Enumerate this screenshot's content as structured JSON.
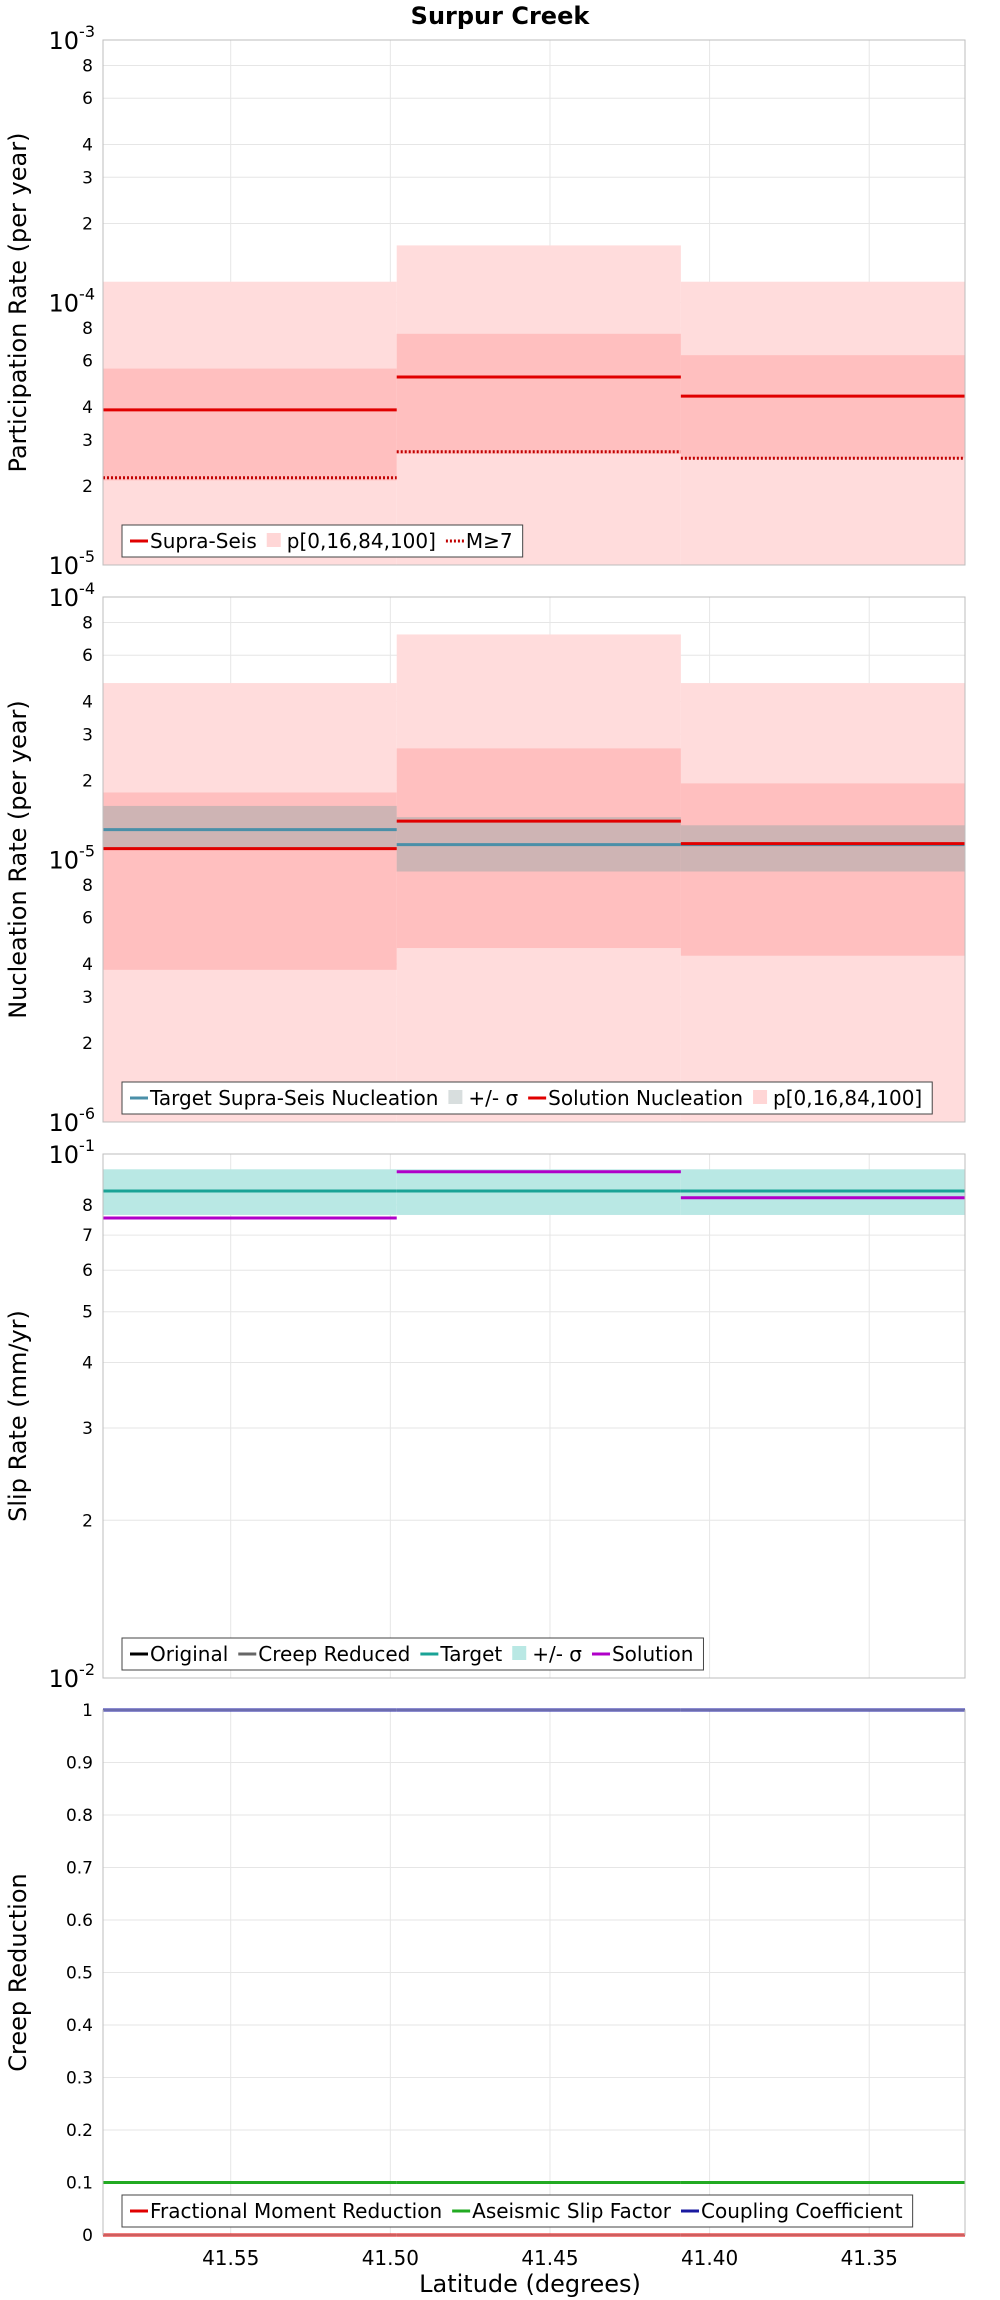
{
  "title": "Surpur Creek",
  "xlabel": "Latitude (degrees)",
  "chart_data": [
    {
      "type": "line",
      "ylabel": "Participation Rate (per year)",
      "yscale": "log",
      "ylim": [
        1e-05,
        0.001
      ],
      "xlim": [
        41.59,
        41.32
      ],
      "x_edges": [
        41.59,
        41.498,
        41.409,
        41.32
      ],
      "yticks": [
        {
          "v": 1e-05,
          "b": "10",
          "e": "-5"
        },
        {
          "v": 2e-05,
          "l": "2"
        },
        {
          "v": 3e-05,
          "l": "3"
        },
        {
          "v": 4e-05,
          "l": "4"
        },
        {
          "v": 6e-05,
          "l": "6"
        },
        {
          "v": 8e-05,
          "l": "8"
        },
        {
          "v": 0.0001,
          "b": "10",
          "e": "-4"
        },
        {
          "v": 0.0002,
          "l": "2"
        },
        {
          "v": 0.0003,
          "l": "3"
        },
        {
          "v": 0.0004,
          "l": "4"
        },
        {
          "v": 0.0006,
          "l": "6"
        },
        {
          "v": 0.0008,
          "l": "8"
        },
        {
          "v": 0.001,
          "b": "10",
          "e": "-3"
        }
      ],
      "bands": [
        {
          "color": "#ffdcdc",
          "lo": [
            1e-05,
            1e-05,
            1e-05
          ],
          "hi": [
            0.00012,
            0.000165,
            0.00012
          ]
        },
        {
          "color": "#ffbfbf",
          "lo": [
            2.1e-05,
            2.65e-05,
            2.55e-05
          ],
          "hi": [
            5.6e-05,
            7.6e-05,
            6.3e-05
          ]
        }
      ],
      "series": [
        {
          "name": "Supra-Seis",
          "color": "#e00000",
          "dash": "",
          "values": [
            3.9e-05,
            5.2e-05,
            4.4e-05
          ]
        },
        {
          "name": "M≥7",
          "color": "#c00000",
          "dash": "2,2",
          "values": [
            2.15e-05,
            2.7e-05,
            2.55e-05
          ]
        }
      ],
      "legend": [
        {
          "kind": "line",
          "color": "#e00000",
          "label": "Supra-Seis"
        },
        {
          "kind": "box",
          "color": "#ffd6d6",
          "label": "p[0,16,84,100]"
        },
        {
          "kind": "dash",
          "color": "#c00000",
          "label": "M≥7"
        }
      ]
    },
    {
      "type": "line",
      "ylabel": "Nucleation Rate (per year)",
      "yscale": "log",
      "ylim": [
        1e-06,
        0.0001
      ],
      "xlim": [
        41.59,
        41.32
      ],
      "x_edges": [
        41.59,
        41.498,
        41.409,
        41.32
      ],
      "yticks": [
        {
          "v": 1e-06,
          "b": "10",
          "e": "-6"
        },
        {
          "v": 2e-06,
          "l": "2"
        },
        {
          "v": 3e-06,
          "l": "3"
        },
        {
          "v": 4e-06,
          "l": "4"
        },
        {
          "v": 6e-06,
          "l": "6"
        },
        {
          "v": 8e-06,
          "l": "8"
        },
        {
          "v": 1e-05,
          "b": "10",
          "e": "-5"
        },
        {
          "v": 2e-05,
          "l": "2"
        },
        {
          "v": 3e-05,
          "l": "3"
        },
        {
          "v": 4e-05,
          "l": "4"
        },
        {
          "v": 6e-05,
          "l": "6"
        },
        {
          "v": 8e-05,
          "l": "8"
        },
        {
          "v": 0.0001,
          "b": "10",
          "e": "-4"
        }
      ],
      "bands": [
        {
          "color": "#ffdcdc",
          "lo": [
            1e-06,
            1e-06,
            1e-06
          ],
          "hi": [
            4.7e-05,
            7.2e-05,
            4.7e-05
          ]
        },
        {
          "color": "#ffbfbf",
          "lo": [
            3.8e-06,
            4.6e-06,
            4.3e-06
          ],
          "hi": [
            1.8e-05,
            2.65e-05,
            1.95e-05
          ]
        },
        {
          "color": "#c9b2b2",
          "opacity": 0.9,
          "lo": [
            1.1e-05,
            9e-06,
            9e-06
          ],
          "hi": [
            1.6e-05,
            1.45e-05,
            1.35e-05
          ]
        }
      ],
      "series": [
        {
          "name": "Target Supra-Seis Nucleation",
          "color": "#4a8fa8",
          "dash": "",
          "values": [
            1.3e-05,
            1.14e-05,
            1.14e-05
          ]
        },
        {
          "name": "Solution Nucleation",
          "color": "#e00000",
          "dash": "",
          "values": [
            1.1e-05,
            1.4e-05,
            1.15e-05
          ]
        }
      ],
      "legend": [
        {
          "kind": "line",
          "color": "#4a8fa8",
          "label": "Target Supra-Seis Nucleation"
        },
        {
          "kind": "box",
          "color": "#d8dede",
          "label": "+/- σ"
        },
        {
          "kind": "line",
          "color": "#e00000",
          "label": "Solution Nucleation"
        },
        {
          "kind": "box",
          "color": "#ffd6d6",
          "label": "p[0,16,84,100]"
        }
      ]
    },
    {
      "type": "line",
      "ylabel": "Slip Rate (mm/yr)",
      "yscale": "log",
      "ylim": [
        0.01,
        0.1
      ],
      "xlim": [
        41.59,
        41.32
      ],
      "x_edges": [
        41.59,
        41.498,
        41.409,
        41.32
      ],
      "yticks": [
        {
          "v": 0.01,
          "b": "10",
          "e": "-2"
        },
        {
          "v": 0.02,
          "l": "2"
        },
        {
          "v": 0.03,
          "l": "3"
        },
        {
          "v": 0.04,
          "l": "4"
        },
        {
          "v": 0.05,
          "l": "5"
        },
        {
          "v": 0.06,
          "l": "6"
        },
        {
          "v": 0.07,
          "l": "7"
        },
        {
          "v": 0.08,
          "l": "8"
        },
        {
          "v": 0.1,
          "b": "10",
          "e": "-1"
        }
      ],
      "bands": [
        {
          "color": "#b9e8e4",
          "lo": [
            0.0765,
            0.0765,
            0.0765
          ],
          "hi": [
            0.0935,
            0.0935,
            0.0935
          ]
        }
      ],
      "series": [
        {
          "name": "Target",
          "color": "#1aa396",
          "dash": "",
          "values": [
            0.085,
            0.085,
            0.085
          ]
        },
        {
          "name": "Solution",
          "color": "#b000c8",
          "dash": "",
          "values": [
            0.0755,
            0.0925,
            0.0825
          ]
        }
      ],
      "legend": [
        {
          "kind": "line",
          "color": "#000000",
          "label": "Original"
        },
        {
          "kind": "line",
          "color": "#666666",
          "label": "Creep Reduced"
        },
        {
          "kind": "line",
          "color": "#1aa396",
          "label": "Target"
        },
        {
          "kind": "box",
          "color": "#b9e8e4",
          "label": "+/- σ"
        },
        {
          "kind": "line",
          "color": "#b000c8",
          "label": "Solution"
        }
      ]
    },
    {
      "type": "line",
      "ylabel": "Creep Reduction",
      "yscale": "linear",
      "ylim": [
        0,
        1
      ],
      "xlim": [
        41.59,
        41.32
      ],
      "x_edges": [
        41.59,
        41.498,
        41.409,
        41.32
      ],
      "yticks": [
        {
          "v": 0,
          "l": "0"
        },
        {
          "v": 0.1,
          "l": "0.1"
        },
        {
          "v": 0.2,
          "l": "0.2"
        },
        {
          "v": 0.3,
          "l": "0.3"
        },
        {
          "v": 0.4,
          "l": "0.4"
        },
        {
          "v": 0.5,
          "l": "0.5"
        },
        {
          "v": 0.6,
          "l": "0.6"
        },
        {
          "v": 0.7,
          "l": "0.7"
        },
        {
          "v": 0.8,
          "l": "0.8"
        },
        {
          "v": 0.9,
          "l": "0.9"
        },
        {
          "v": 1,
          "l": "1"
        }
      ],
      "xticks": [
        "41.55",
        "41.50",
        "41.45",
        "41.40",
        "41.35"
      ],
      "xtick_values": [
        41.55,
        41.5,
        41.45,
        41.4,
        41.35
      ],
      "bands": [],
      "series": [
        {
          "name": "Fractional Moment Reduction",
          "color": "#e00000",
          "dash": "",
          "values": [
            0,
            0,
            0
          ]
        },
        {
          "name": "Aseismic Slip Factor",
          "color": "#22aa22",
          "dash": "",
          "values": [
            0.1,
            0.1,
            0.1
          ]
        },
        {
          "name": "Coupling Coefficient",
          "color": "#1a1aa0",
          "dash": "",
          "values": [
            1,
            1,
            1
          ]
        }
      ],
      "legend": [
        {
          "kind": "line",
          "color": "#e00000",
          "label": "Fractional Moment Reduction"
        },
        {
          "kind": "line",
          "color": "#22aa22",
          "label": "Aseismic Slip Factor"
        },
        {
          "kind": "line",
          "color": "#1a1aa0",
          "label": "Coupling Coefficient"
        }
      ]
    }
  ]
}
